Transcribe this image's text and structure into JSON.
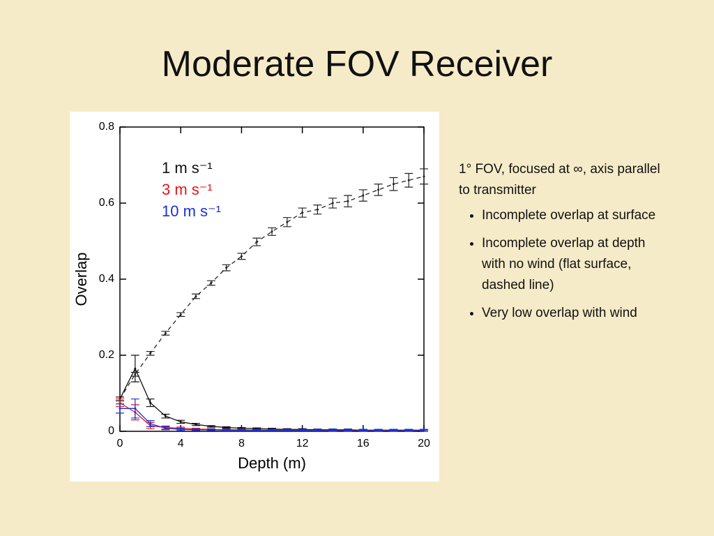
{
  "title": "Moderate FOV Receiver",
  "notes": {
    "intro": "1° FOV, focused at ∞, axis parallel to transmitter",
    "bullets": [
      "Incomplete overlap at surface",
      "Incomplete overlap at depth with no wind (flat surface, dashed line)",
      "Very low overlap with wind"
    ]
  },
  "chart_data": {
    "type": "line",
    "xlabel": "Depth (m)",
    "ylabel": "Overlap",
    "x": [
      0,
      1,
      2,
      3,
      4,
      5,
      6,
      7,
      8,
      9,
      10,
      11,
      12,
      13,
      14,
      15,
      16,
      17,
      18,
      19,
      20
    ],
    "xlim": [
      0,
      20
    ],
    "xticks": [
      0,
      4,
      8,
      12,
      16,
      20
    ],
    "ylim": [
      0,
      0.8
    ],
    "yticks": [
      0,
      0.2,
      0.4,
      0.6,
      0.8
    ],
    "grid": false,
    "legend": "upper left",
    "series": [
      {
        "color": "#222222",
        "dashed": true,
        "values": [
          0.085,
          0.15,
          0.205,
          0.258,
          0.307,
          0.355,
          0.39,
          0.43,
          0.46,
          0.498,
          0.525,
          0.55,
          0.575,
          0.583,
          0.6,
          0.605,
          0.62,
          0.635,
          0.65,
          0.66,
          0.67
        ],
        "errors": [
          0.005,
          0.005,
          0.005,
          0.005,
          0.005,
          0.006,
          0.006,
          0.008,
          0.008,
          0.01,
          0.01,
          0.012,
          0.012,
          0.012,
          0.013,
          0.015,
          0.015,
          0.015,
          0.017,
          0.018,
          0.02
        ]
      },
      {
        "name": "1 m s⁻¹",
        "color": "#111111",
        "dashed": false,
        "values": [
          0.085,
          0.165,
          0.075,
          0.04,
          0.025,
          0.018,
          0.013,
          0.01,
          0.008,
          0.007,
          0.006,
          0.005,
          0.005,
          0.004,
          0.004,
          0.004,
          0.003,
          0.003,
          0.003,
          0.003,
          0.003
        ],
        "errors": [
          0.005,
          0.035,
          0.01,
          0.005,
          0.004,
          0.003,
          0.002,
          0.002,
          0.002,
          0.002,
          0.002,
          0.002,
          0.002,
          0.002,
          0.002,
          0.002,
          0.002,
          0.002,
          0.002,
          0.002,
          0.002
        ]
      },
      {
        "name": "3 m s⁻¹",
        "color": "#e8141b",
        "dashed": false,
        "values": [
          0.075,
          0.05,
          0.015,
          0.01,
          0.008,
          0.006,
          0.005,
          0.004,
          0.004,
          0.003,
          0.003,
          0.003,
          0.003,
          0.003,
          0.002,
          0.002,
          0.002,
          0.002,
          0.002,
          0.002,
          0.002
        ],
        "errors": [
          0.01,
          0.02,
          0.008,
          0.004,
          0.003,
          0.002,
          0.002,
          0.002,
          0.002,
          0.002,
          0.002,
          0.002,
          0.002,
          0.002,
          0.002,
          0.002,
          0.002,
          0.002,
          0.002,
          0.002,
          0.002
        ]
      },
      {
        "name": "10 m s⁻¹",
        "color": "#1a2fd6",
        "dashed": false,
        "values": [
          0.06,
          0.06,
          0.02,
          0.008,
          0.005,
          0.004,
          0.004,
          0.003,
          0.003,
          0.003,
          0.003,
          0.003,
          0.003,
          0.003,
          0.003,
          0.003,
          0.003,
          0.003,
          0.003,
          0.003,
          0.003
        ],
        "errors": [
          0.012,
          0.025,
          0.008,
          0.004,
          0.003,
          0.002,
          0.002,
          0.002,
          0.002,
          0.002,
          0.002,
          0.002,
          0.002,
          0.002,
          0.002,
          0.002,
          0.002,
          0.002,
          0.002,
          0.002,
          0.002
        ]
      }
    ]
  }
}
